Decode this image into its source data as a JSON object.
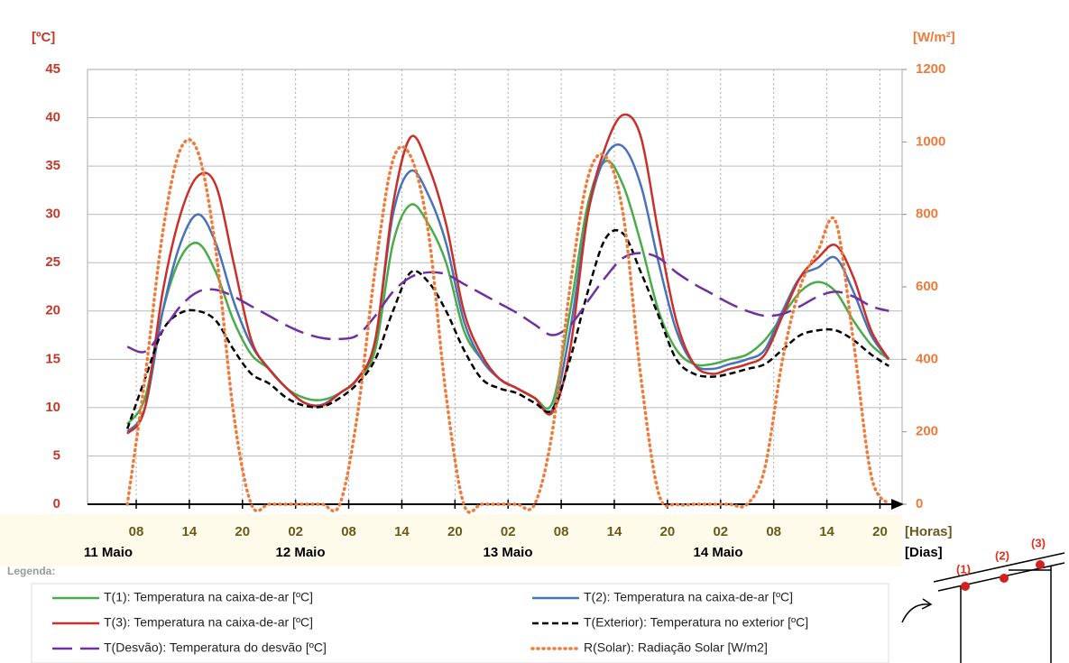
{
  "chart_data": {
    "type": "line",
    "y_label": "[ºC]",
    "y2_label": "[W/m²]",
    "x_label": "[Horas]",
    "x2_label": "[Dias]",
    "day_labels": [
      "11 Maio",
      "12 Maio",
      "13 Maio",
      "14 Maio"
    ],
    "legend_title": "Legenda:",
    "diagram_labels": [
      "(1)",
      "(2)",
      "(3)"
    ],
    "xlim": [
      2.5,
      94.5
    ],
    "xticks": [
      {
        "value": 8,
        "label": "08"
      },
      14,
      20,
      {
        "value": 26,
        "label": "02"
      },
      {
        "value": 32,
        "label": "08"
      },
      {
        "value": 38,
        "label": "14"
      },
      {
        "value": 44,
        "label": "20"
      },
      {
        "value": 50,
        "label": "02"
      },
      {
        "value": 56,
        "label": "08"
      },
      {
        "value": 62,
        "label": "14"
      },
      {
        "value": 68,
        "label": "20"
      },
      {
        "value": 74,
        "label": "02"
      },
      {
        "value": 80,
        "label": "08"
      },
      {
        "value": 86,
        "label": "14"
      },
      {
        "value": 92,
        "label": "20"
      }
    ],
    "ylim": [
      0,
      45
    ],
    "yticks": [
      0,
      5,
      10,
      15,
      20,
      25,
      30,
      35,
      40,
      45
    ],
    "y2lim": [
      0,
      1200
    ],
    "y2ticks": [
      0,
      200,
      400,
      600,
      800,
      1000,
      1200
    ],
    "grid": true,
    "x": [
      7,
      9,
      11,
      13,
      15,
      17,
      19,
      21,
      23,
      25,
      27,
      29,
      31,
      33,
      35,
      37,
      39,
      41,
      43,
      45,
      47,
      49,
      51,
      53,
      55,
      57,
      59,
      61,
      63,
      65,
      67,
      69,
      71,
      73,
      75,
      77,
      79,
      81,
      83,
      85,
      87,
      89,
      91,
      93
    ],
    "series": [
      {
        "name": "T(1): Temperatura na caixa-de-ar [ºC]",
        "color": "#4aab4a",
        "dash": "solid",
        "values": [
          8.3,
          11,
          20,
          25.5,
          27,
          24,
          19,
          15.5,
          14,
          12,
          11,
          10.8,
          11.5,
          13,
          16,
          27,
          31,
          29,
          25,
          18,
          15,
          13,
          12,
          11,
          10.5,
          20,
          31,
          35.5,
          33,
          27,
          20,
          16,
          14.5,
          14.5,
          15,
          15.5,
          17,
          19.5,
          22,
          23,
          22,
          19,
          16.5,
          15
        ]
      },
      {
        "name": "T(2): Temperatura na caixa-de-ar [ºC]",
        "color": "#4a72b8",
        "dash": "solid",
        "values": [
          7.5,
          10,
          20,
          27,
          30,
          27,
          21,
          16.5,
          14,
          12,
          10.5,
          10.3,
          11.5,
          13,
          17,
          30,
          34.5,
          32,
          27,
          19,
          15,
          13,
          12,
          11,
          9.8,
          18,
          30,
          36,
          37,
          33,
          25,
          18,
          14.5,
          14,
          14.5,
          15,
          16,
          20,
          23.5,
          24.5,
          25.5,
          22,
          17.5,
          15
        ]
      },
      {
        "name": "T(3): Temperatura na caixa-de-ar [ºC]",
        "color": "#c8302a",
        "dash": "solid",
        "values": [
          7.3,
          10,
          22,
          30,
          34,
          33,
          25,
          17,
          14,
          12,
          10.5,
          10.2,
          11.5,
          13,
          17,
          31,
          38,
          35,
          29,
          20,
          15.5,
          13,
          12,
          11,
          9.5,
          16,
          30,
          37,
          40.3,
          38,
          28,
          19,
          14.5,
          13.5,
          14,
          14.5,
          15.5,
          19.5,
          23.5,
          25.5,
          26.8,
          23.5,
          18,
          15
        ]
      },
      {
        "name": "T(Exterior): Temperatura no exterior [ºC]",
        "color": "#000000",
        "dash": "short",
        "values": [
          7.8,
          13,
          18,
          19.8,
          20,
          19,
          16,
          13.5,
          12.5,
          11,
          10.2,
          10.1,
          11,
          12.5,
          15,
          20,
          24,
          23,
          20,
          16,
          13,
          12,
          11.5,
          10.5,
          9.8,
          15,
          22,
          27.5,
          28,
          24,
          19.5,
          15,
          13.5,
          13.2,
          13.5,
          14,
          14.5,
          16,
          17.5,
          18,
          18,
          17,
          15.5,
          14.3
        ]
      },
      {
        "name": "T(Desvão): Temperatura do desvão [ºC]",
        "color": "#7030a0",
        "dash": "long",
        "values": [
          16.3,
          15.8,
          18,
          20.5,
          22,
          22.2,
          21.5,
          20.5,
          19.5,
          18.5,
          17.7,
          17.2,
          17.1,
          17.5,
          19.5,
          22,
          23.5,
          24,
          23.8,
          22.8,
          21.8,
          20.8,
          19.8,
          18.6,
          17.5,
          18.5,
          21,
          23.5,
          25.5,
          26,
          25.5,
          24,
          22.8,
          21.8,
          20.8,
          20,
          19.5,
          19.7,
          20.5,
          21.5,
          22,
          21.5,
          20.5,
          20
        ]
      },
      {
        "name": "R(Solar): Radiação Solar [W/m2]",
        "color": "#f07a3a",
        "dash": "dot",
        "axis": "y2",
        "values": [
          0,
          350,
          750,
          980,
          970,
          700,
          250,
          0,
          0,
          0,
          0,
          0,
          0,
          250,
          650,
          950,
          960,
          750,
          300,
          0,
          0,
          0,
          0,
          0,
          200,
          600,
          900,
          960,
          800,
          350,
          30,
          0,
          0,
          0,
          0,
          0,
          100,
          400,
          600,
          700,
          780,
          450,
          80,
          0
        ]
      }
    ]
  }
}
